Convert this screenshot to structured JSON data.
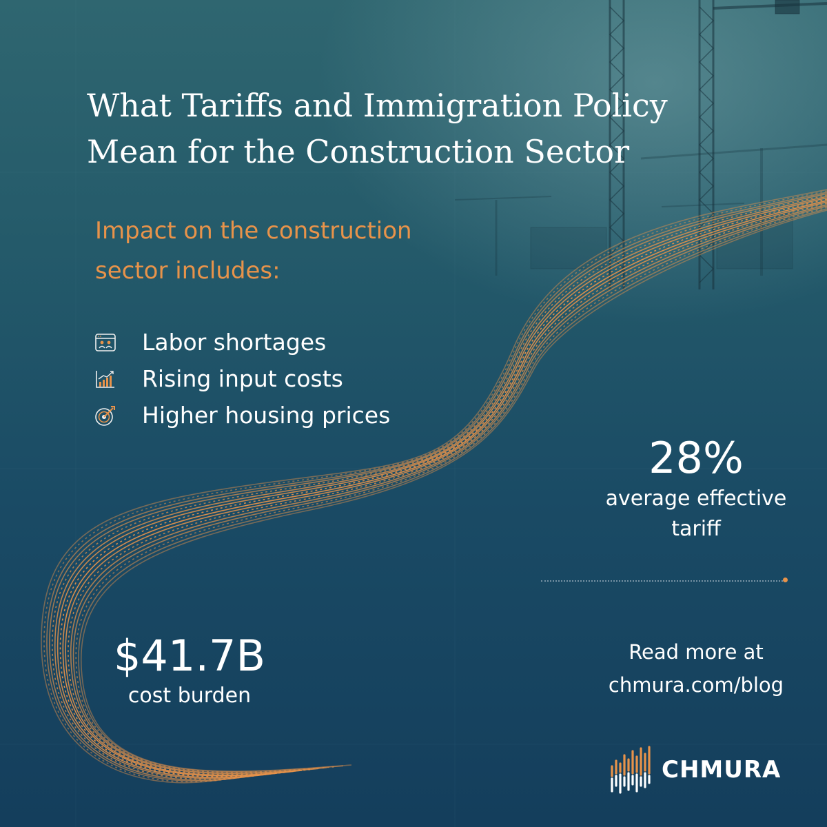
{
  "title": {
    "line1": "What Tariffs and Immigration Policy",
    "line2": "Mean for the Construction Sector"
  },
  "subhead": "Impact on the construction sector includes:",
  "impacts": [
    {
      "icon": "people-icon",
      "label": "Labor shortages"
    },
    {
      "icon": "bar-chart-rising-icon",
      "label": "Rising input costs"
    },
    {
      "icon": "target-icon",
      "label": "Higher housing prices"
    }
  ],
  "stat_tariff": {
    "value": "28%",
    "label_line1": "average effective",
    "label_line2": "tariff"
  },
  "stat_cost": {
    "value": "$41.7B",
    "label": "cost burden"
  },
  "read_more": {
    "line1": "Read more at",
    "line2": "chmura.com/blog"
  },
  "logo": {
    "wordmark": "CHMURA"
  },
  "colors": {
    "accent": "#e8934a",
    "background": "#1a4b65",
    "text": "#ffffff"
  }
}
